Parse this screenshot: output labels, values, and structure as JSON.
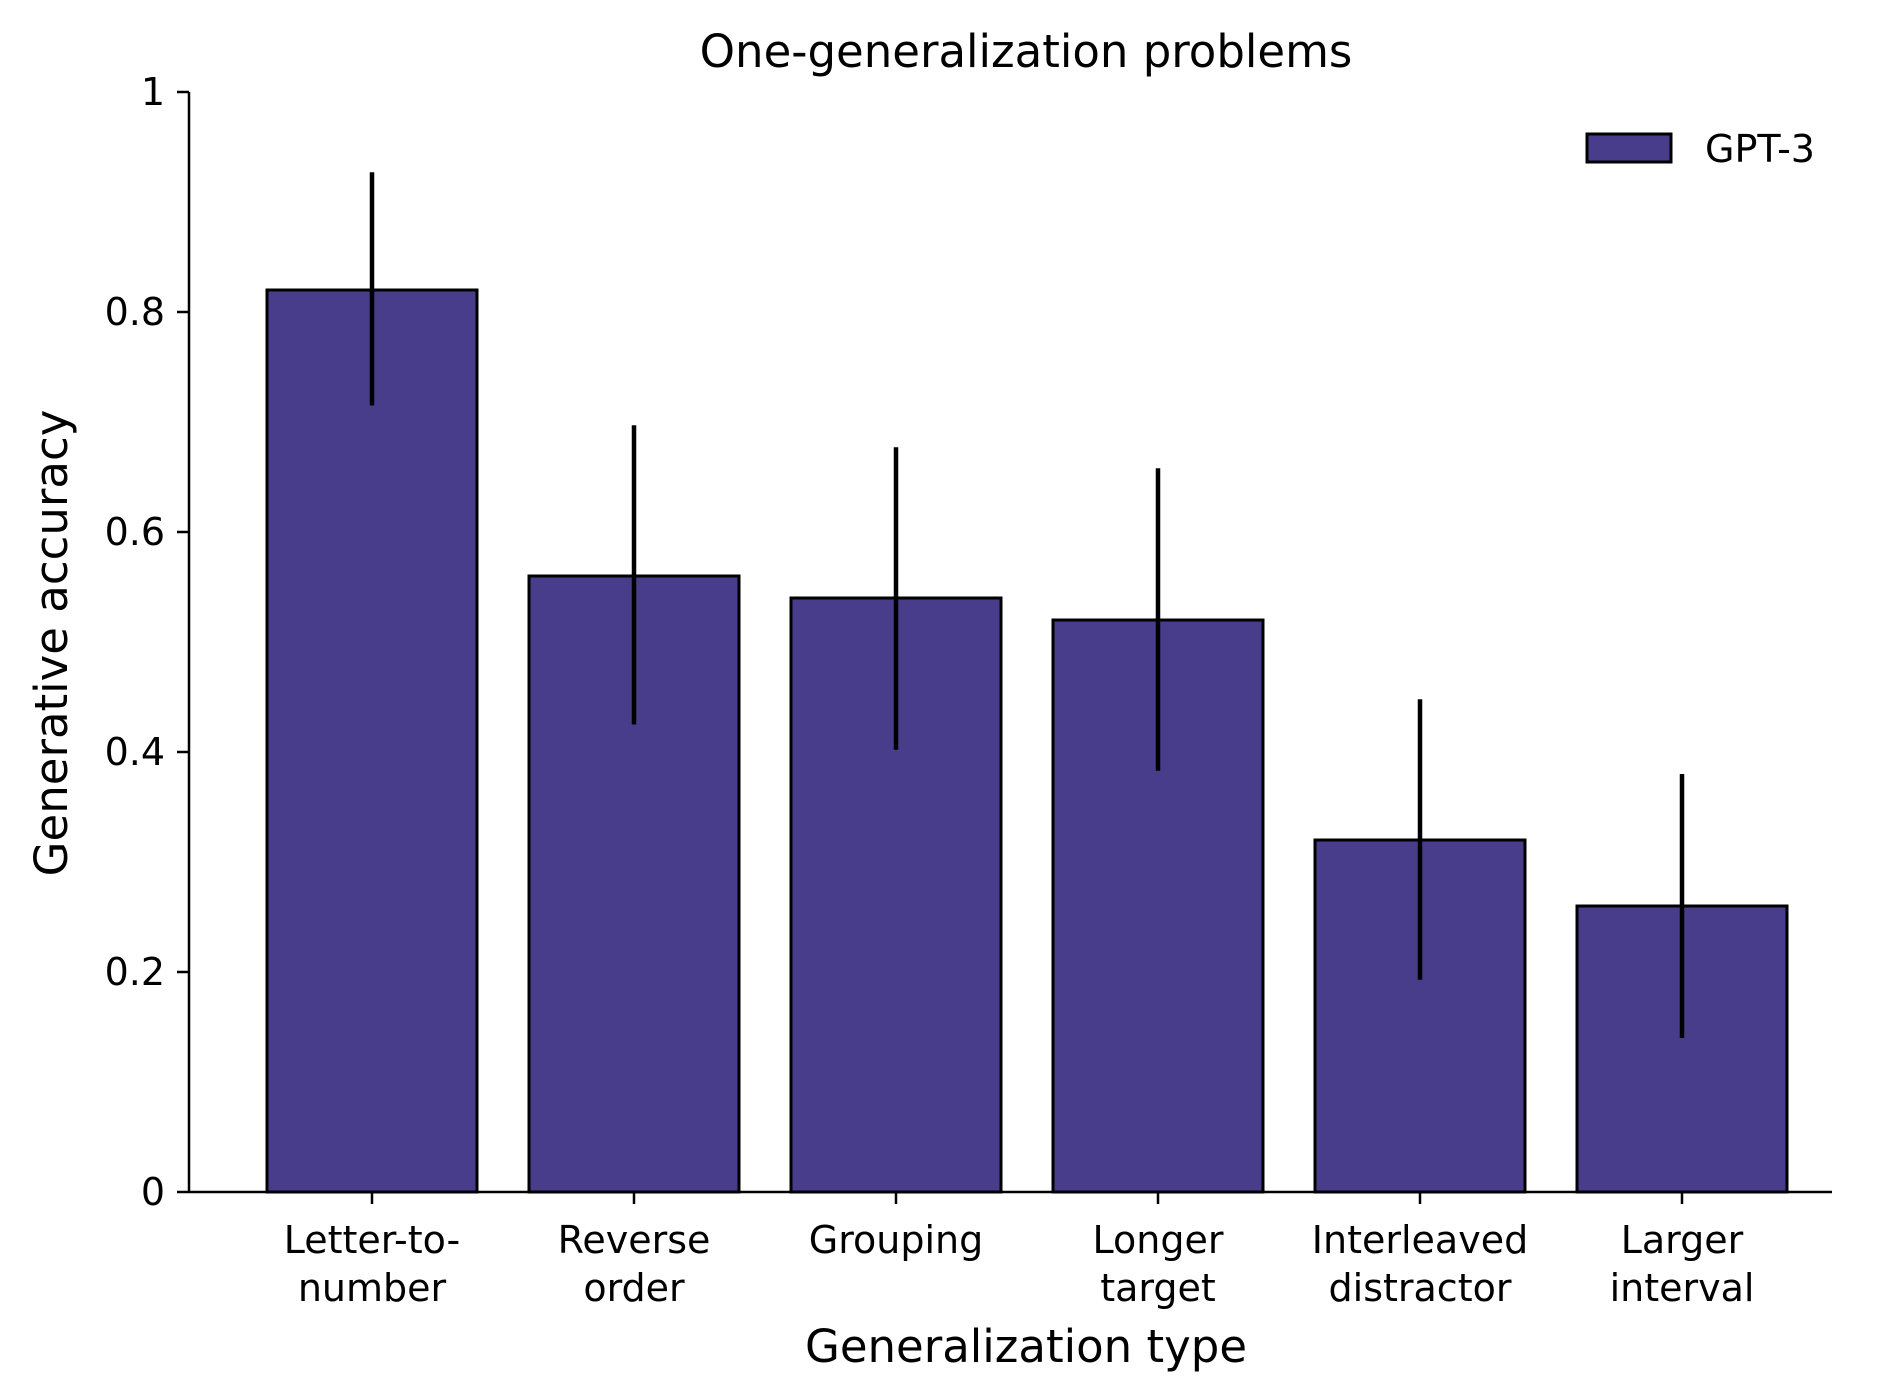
{
  "chart_data": {
    "type": "bar",
    "title": "One-generalization problems",
    "xlabel": "Generalization type",
    "ylabel": "Generative accuracy",
    "categories": [
      [
        "Letter-to-",
        "number"
      ],
      [
        "Reverse",
        "order"
      ],
      [
        "Grouping"
      ],
      [
        "Longer",
        "target"
      ],
      [
        "Interleaved",
        "distractor"
      ],
      [
        "Larger",
        "interval"
      ]
    ],
    "series": [
      {
        "name": "GPT-3",
        "color": "#483D8B",
        "values": [
          0.82,
          0.56,
          0.54,
          0.52,
          0.32,
          0.26
        ],
        "error_low": [
          0.715,
          0.425,
          0.402,
          0.383,
          0.193,
          0.14
        ],
        "error_high": [
          0.927,
          0.697,
          0.677,
          0.658,
          0.448,
          0.38
        ]
      }
    ],
    "ylim": [
      0,
      1
    ],
    "yticks": [
      {
        "value": 0,
        "label": "0"
      },
      {
        "value": 0.2,
        "label": "0.2"
      },
      {
        "value": 0.4,
        "label": "0.4"
      },
      {
        "value": 0.6,
        "label": "0.6"
      },
      {
        "value": 0.8,
        "label": "0.8"
      },
      {
        "value": 1,
        "label": "1"
      }
    ],
    "grid": false,
    "legend_position": "top-right"
  }
}
